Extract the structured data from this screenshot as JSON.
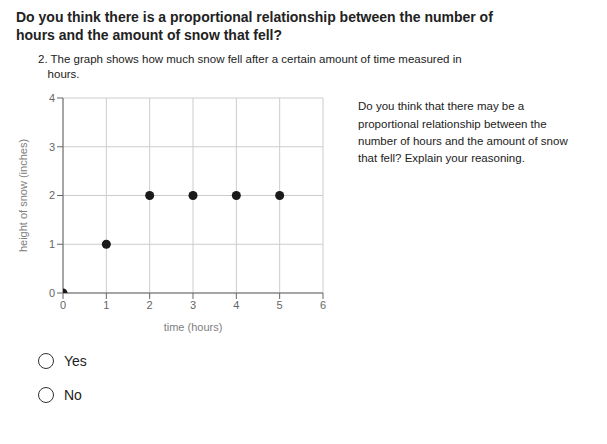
{
  "chart_data": {
    "type": "scatter",
    "title": "Do you think there is a proportional relationship between the number of\nhours and the amount of snow that fell?",
    "subtitle": "2. The graph shows how much snow fell after a certain amount of time measured in\n   hours.",
    "annotations": [
      "Do you think that there may be a\nproportional relationship between the\nnumber of hours and the amount of snow\nthat fell? Explain your reasoning.",
      "Yes",
      "No"
    ],
    "xlabel": "time (hours)",
    "ylabel": "height of snow (inches)",
    "x": [
      0,
      1,
      2,
      3,
      4,
      5
    ],
    "values": [
      0,
      1,
      2,
      2,
      2,
      2
    ],
    "color": "#1a1a1a",
    "xlim": [
      0,
      6
    ],
    "ylim": [
      0,
      4
    ],
    "xticks": [
      0,
      1,
      2,
      3,
      4,
      5,
      6
    ],
    "yticks": [
      0,
      1,
      2,
      3,
      4
    ],
    "grid": true
  }
}
